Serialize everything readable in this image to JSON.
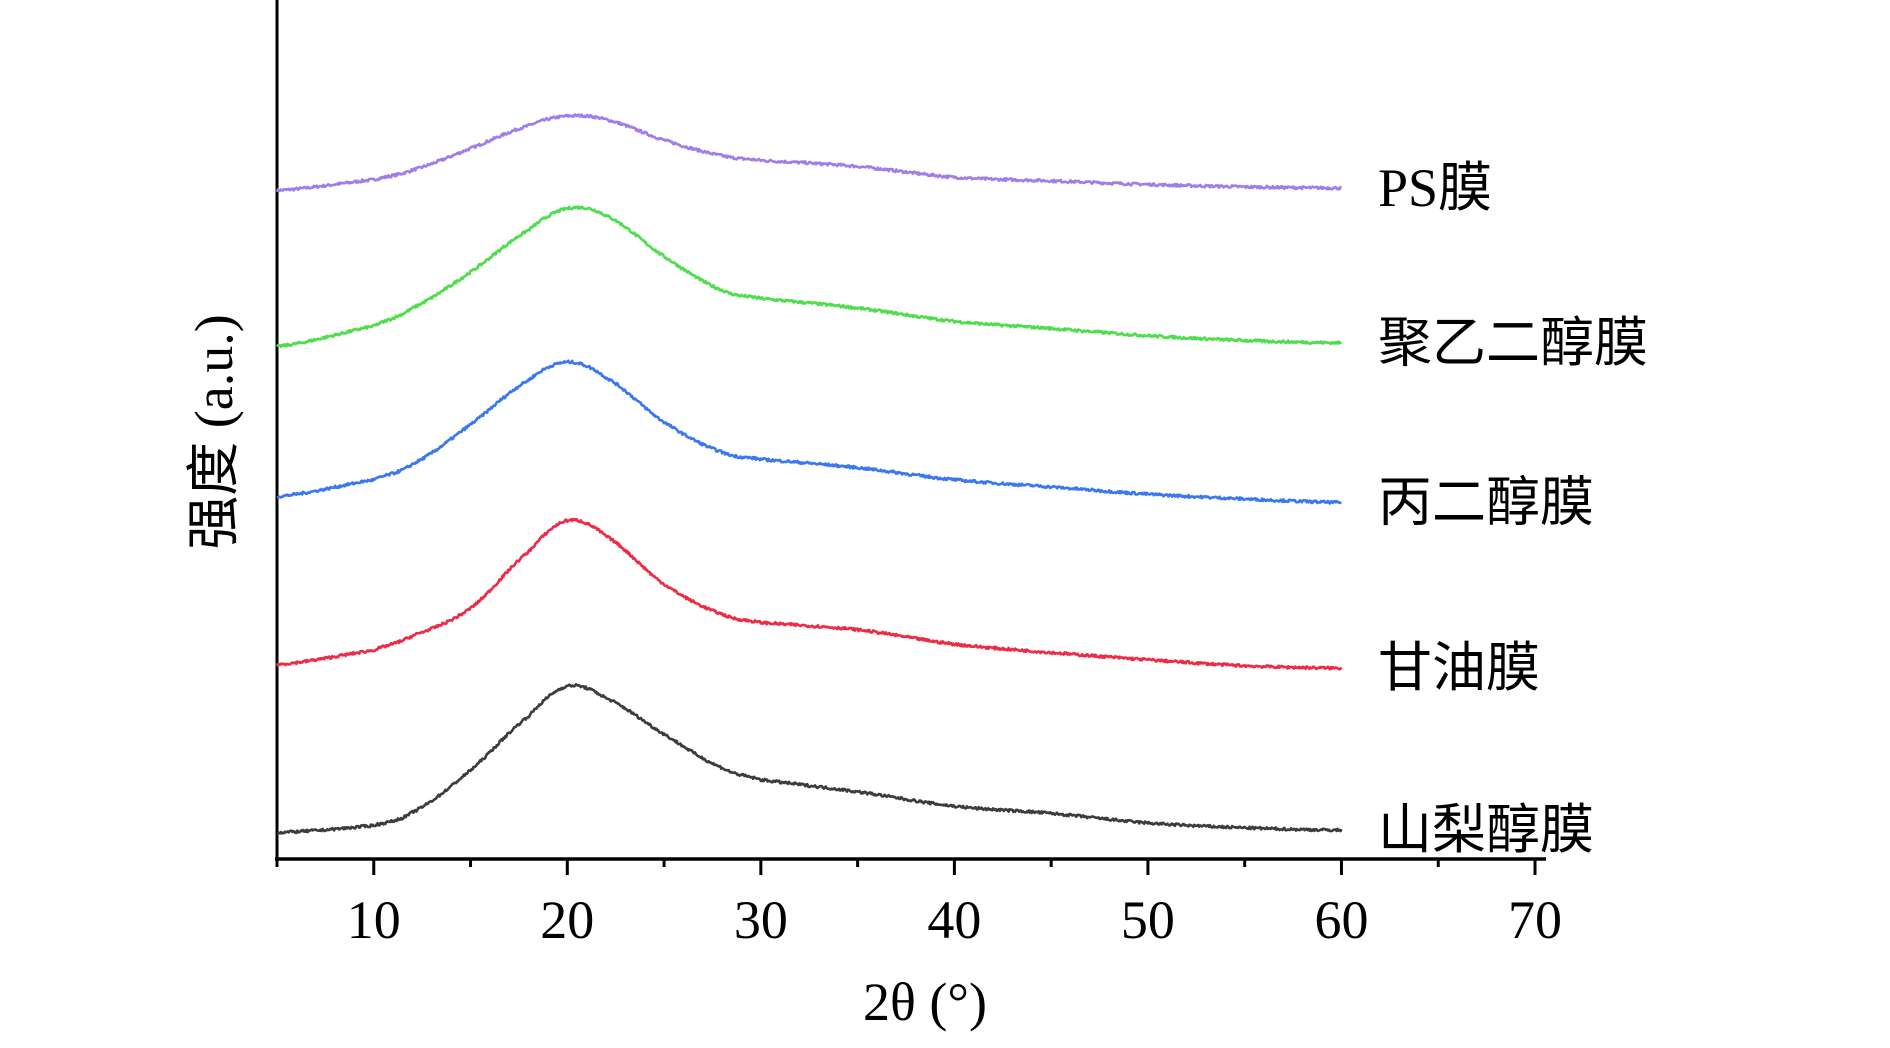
{
  "chart_data": {
    "type": "line",
    "title": "",
    "xlabel": "2θ (°)",
    "ylabel": "强度 (a.u.)",
    "xlim": [
      5,
      70
    ],
    "ylim": [
      0,
      714
    ],
    "xticks": [
      10,
      20,
      30,
      40,
      50,
      60,
      70
    ],
    "grid": false,
    "legend": "inline-right",
    "x": [
      5,
      10,
      12,
      15,
      18,
      20,
      22,
      25,
      28,
      30,
      35,
      40,
      45,
      50,
      55,
      60
    ],
    "series": [
      {
        "name": "PS膜",
        "color": "#a07de8",
        "values": [
          557,
          566,
          574,
          592,
          611,
          619,
          616,
          599,
          586,
          582,
          577,
          568,
          565,
          562,
          560,
          559
        ]
      },
      {
        "name": "聚乙二醇膜",
        "color": "#4ddd4d",
        "values": [
          427,
          444,
          459,
          489,
          524,
          542,
          536,
          502,
          474,
          467,
          459,
          448,
          442,
          436,
          432,
          430
        ]
      },
      {
        "name": "丙二醇膜",
        "color": "#3a78f0",
        "values": [
          302,
          316,
          329,
          362,
          399,
          414,
          401,
          364,
          339,
          333,
          326,
          316,
          310,
          304,
          300,
          297
        ]
      },
      {
        "name": "甘油膜",
        "color": "#ee2a45",
        "values": [
          162,
          174,
          186,
          209,
          256,
          282,
          269,
          229,
          204,
          197,
          191,
          179,
          172,
          166,
          161,
          159
        ]
      },
      {
        "name": "山梨醇膜",
        "color": "#3a3d40",
        "values": [
          22,
          28,
          39,
          74,
          119,
          144,
          134,
          104,
          76,
          66,
          56,
          44,
          38,
          30,
          26,
          24
        ]
      }
    ]
  }
}
